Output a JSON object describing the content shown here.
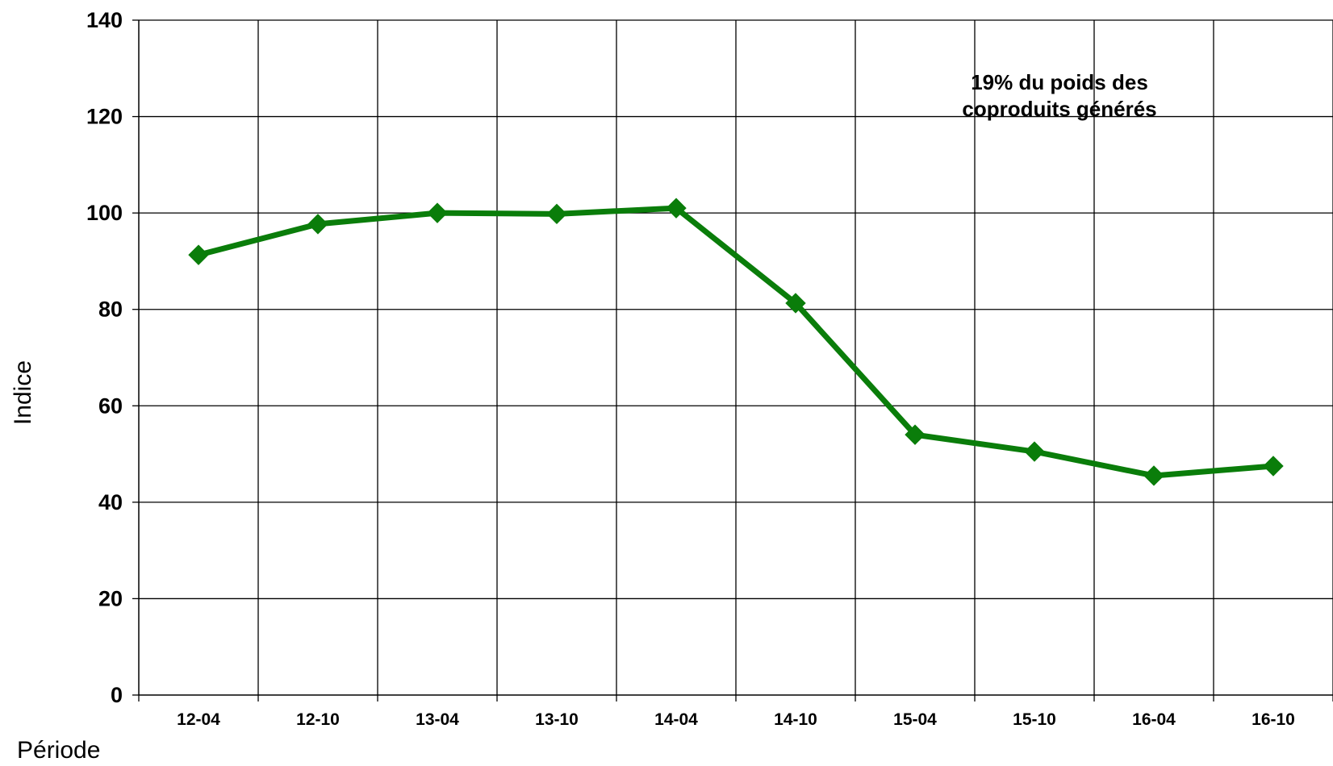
{
  "chart_data": {
    "type": "line",
    "categories": [
      "12-04",
      "12-10",
      "13-04",
      "13-10",
      "14-04",
      "14-10",
      "15-04",
      "15-10",
      "16-04",
      "16-10"
    ],
    "series": [
      {
        "values": [
          91.3,
          97.7,
          100.0,
          99.8,
          101.0,
          81.3,
          54.0,
          50.5,
          45.5,
          47.5
        ],
        "color": "#0a7d0a",
        "marker": "diamond"
      }
    ],
    "xlabel": "Période",
    "ylabel": "Indice",
    "ylim": [
      0,
      140
    ],
    "yticks": [
      "0",
      "20",
      "40",
      "60",
      "80",
      "100",
      "120",
      "140"
    ],
    "annotation": {
      "lines": [
        "19% du poids des",
        "coproduits générés"
      ],
      "position": "top-right"
    },
    "grid": true,
    "legend": "none"
  }
}
